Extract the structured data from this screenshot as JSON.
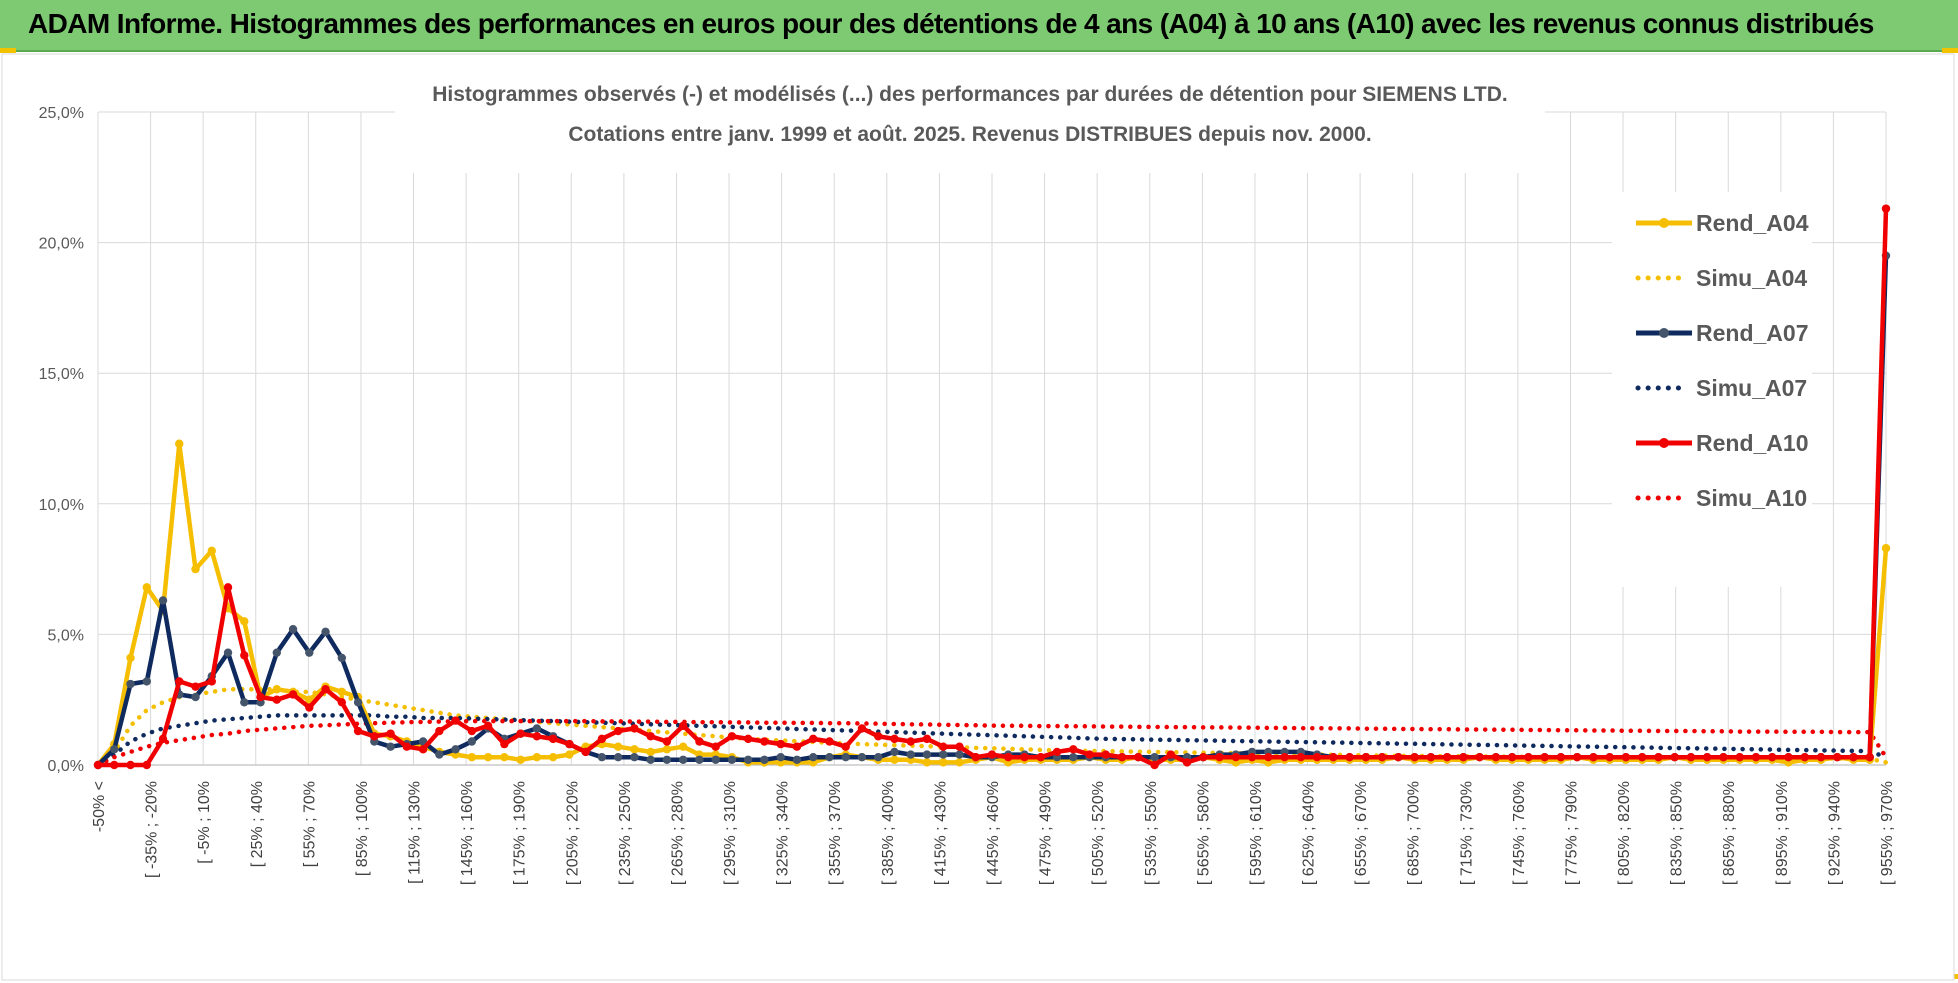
{
  "header": {
    "title": "ADAM Informe. Histogrammes des performances en euros pour des détentions de 4 ans (A04) à 10 ans (A10) avec les revenus connus distribués"
  },
  "chart_data": {
    "type": "line",
    "title": "Histogrammes observés (-) et modélisés (...) des performances par durées de détention pour SIEMENS LTD.",
    "subtitle": "Cotations entre janv. 1999 et août. 2025. Revenus DISTRIBUES depuis nov. 2000.",
    "xlabel": "",
    "ylabel": "",
    "ylim": [
      0,
      25
    ],
    "ytick_labels": [
      "0,0%",
      "5,0%",
      "10,0%",
      "15,0%",
      "20,0%",
      "25,0%"
    ],
    "grid": true,
    "legend_position": "right",
    "x_tick_labels": [
      "-50% <",
      "[ -35% ; -20%",
      "[ -5% ; 10%",
      "[ 25% ; 40%",
      "[ 55% ; 70%",
      "[ 85% ; 100%",
      "[ 115% ; 130%",
      "[ 145% ; 160%",
      "[ 175% ; 190%",
      "[ 205% ; 220%",
      "[ 235% ; 250%",
      "[ 265% ; 280%",
      "[ 295% ; 310%",
      "[ 325% ; 340%",
      "[ 355% ; 370%",
      "[ 385% ; 400%",
      "[ 415% ; 430%",
      "[ 445% ; 460%",
      "[ 475% ; 490%",
      "[ 505% ; 520%",
      "[ 535% ; 550%",
      "[ 565% ; 580%",
      "[ 595% ; 610%",
      "[ 625% ; 640%",
      "[ 655% ; 670%",
      "[ 685% ; 700%",
      "[ 715% ; 730%",
      "[ 745% ; 760%",
      "[ 775% ; 790%",
      "[ 805% ; 820%",
      "[ 835% ; 850%",
      "[ 865% ; 880%",
      "[ 895% ; 910%",
      "[ 925% ; 940%",
      "[ 955% ; 970%"
    ],
    "series": [
      {
        "name": "Rend_A04",
        "color": "#f5be00",
        "style": "solid",
        "markers": true,
        "values": [
          0.0,
          0.8,
          4.1,
          6.8,
          5.9,
          12.3,
          7.5,
          8.2,
          6.0,
          5.5,
          2.6,
          2.9,
          2.8,
          2.5,
          3.0,
          2.8,
          2.6,
          1.2,
          1.1,
          0.9,
          0.7,
          0.5,
          0.4,
          0.3,
          0.3,
          0.3,
          0.2,
          0.3,
          0.3,
          0.4,
          0.7,
          0.8,
          0.7,
          0.6,
          0.5,
          0.6,
          0.7,
          0.4,
          0.4,
          0.3,
          0.1,
          0.1,
          0.1,
          0.1,
          0.1,
          0.3,
          0.4,
          0.3,
          0.2,
          0.2,
          0.2,
          0.1,
          0.1,
          0.1,
          0.2,
          0.3,
          0.1,
          0.2,
          0.2,
          0.2,
          0.2,
          0.3,
          0.2,
          0.2,
          0.3,
          0.2,
          0.2,
          0.2,
          0.3,
          0.2,
          0.1,
          0.2,
          0.1,
          0.2,
          0.2,
          0.2,
          0.2,
          0.2,
          0.2,
          0.2,
          0.3,
          0.2,
          0.2,
          0.2,
          0.2,
          0.3,
          0.2,
          0.2,
          0.2,
          0.2,
          0.2,
          0.3,
          0.2,
          0.2,
          0.2,
          0.2,
          0.2,
          0.3,
          0.2,
          0.2,
          0.2,
          0.2,
          0.2,
          0.2,
          0.1,
          0.2,
          0.2,
          0.3,
          0.2,
          0.2,
          8.3
        ]
      },
      {
        "name": "Simu_A04",
        "color": "#f5be00",
        "style": "dotted",
        "markers": false,
        "values": [
          0.0,
          0.5,
          1.5,
          2.1,
          2.4,
          2.6,
          2.7,
          2.8,
          2.9,
          2.9,
          2.9,
          2.9,
          2.8,
          2.8,
          2.7,
          2.6,
          2.5,
          2.4,
          2.3,
          2.2,
          2.1,
          2.0,
          1.9,
          1.85,
          1.8,
          1.75,
          1.7,
          1.65,
          1.6,
          1.55,
          1.5,
          1.45,
          1.4,
          1.35,
          1.3,
          1.25,
          1.2,
          1.15,
          1.1,
          1.05,
          1.0,
          0.97,
          0.94,
          0.91,
          0.88,
          0.85,
          0.82,
          0.8,
          0.78,
          0.76,
          0.74,
          0.72,
          0.7,
          0.68,
          0.66,
          0.64,
          0.62,
          0.6,
          0.58,
          0.56,
          0.55,
          0.54,
          0.53,
          0.52,
          0.51,
          0.5,
          0.49,
          0.48,
          0.47,
          0.46,
          0.45,
          0.44,
          0.43,
          0.42,
          0.41,
          0.4,
          0.39,
          0.38,
          0.37,
          0.36,
          0.35,
          0.35,
          0.34,
          0.34,
          0.33,
          0.33,
          0.32,
          0.32,
          0.31,
          0.31,
          0.3,
          0.3,
          0.3,
          0.29,
          0.29,
          0.28,
          0.28,
          0.28,
          0.27,
          0.27,
          0.27,
          0.26,
          0.26,
          0.26,
          0.25,
          0.25,
          0.25,
          0.25,
          0.24,
          0.24,
          0.1
        ]
      },
      {
        "name": "Rend_A07",
        "color": "#0f2a5e",
        "style": "solid",
        "markers": true,
        "values": [
          0.0,
          0.6,
          3.1,
          3.2,
          6.3,
          2.7,
          2.6,
          3.4,
          4.3,
          2.4,
          2.4,
          4.3,
          5.2,
          4.3,
          5.1,
          4.1,
          2.4,
          0.9,
          0.7,
          0.8,
          0.9,
          0.4,
          0.6,
          0.9,
          1.4,
          1.0,
          1.2,
          1.4,
          1.1,
          0.8,
          0.5,
          0.3,
          0.3,
          0.3,
          0.2,
          0.2,
          0.2,
          0.2,
          0.2,
          0.2,
          0.2,
          0.2,
          0.3,
          0.2,
          0.3,
          0.3,
          0.3,
          0.3,
          0.3,
          0.5,
          0.4,
          0.4,
          0.4,
          0.4,
          0.3,
          0.3,
          0.4,
          0.4,
          0.3,
          0.3,
          0.3,
          0.3,
          0.3,
          0.3,
          0.3,
          0.3,
          0.3,
          0.3,
          0.3,
          0.4,
          0.4,
          0.5,
          0.5,
          0.5,
          0.5,
          0.4,
          0.3,
          0.3,
          0.3,
          0.3,
          0.3,
          0.3,
          0.3,
          0.3,
          0.3,
          0.3,
          0.3,
          0.3,
          0.3,
          0.3,
          0.3,
          0.3,
          0.3,
          0.3,
          0.3,
          0.3,
          0.3,
          0.3,
          0.3,
          0.3,
          0.3,
          0.3,
          0.3,
          0.3,
          0.3,
          0.3,
          0.3,
          0.3,
          0.3,
          0.3,
          19.5
        ]
      },
      {
        "name": "Simu_A07",
        "color": "#0f2a5e",
        "style": "dotted",
        "markers": false,
        "values": [
          0.0,
          0.4,
          0.9,
          1.2,
          1.4,
          1.5,
          1.6,
          1.7,
          1.75,
          1.8,
          1.85,
          1.9,
          1.9,
          1.9,
          1.9,
          1.9,
          1.9,
          1.9,
          1.85,
          1.85,
          1.8,
          1.8,
          1.8,
          1.78,
          1.76,
          1.74,
          1.72,
          1.7,
          1.68,
          1.66,
          1.64,
          1.62,
          1.6,
          1.58,
          1.56,
          1.54,
          1.52,
          1.5,
          1.48,
          1.46,
          1.44,
          1.42,
          1.4,
          1.38,
          1.36,
          1.34,
          1.32,
          1.3,
          1.28,
          1.26,
          1.24,
          1.22,
          1.2,
          1.18,
          1.16,
          1.14,
          1.12,
          1.1,
          1.08,
          1.06,
          1.04,
          1.02,
          1.0,
          0.99,
          0.98,
          0.97,
          0.96,
          0.95,
          0.94,
          0.93,
          0.92,
          0.91,
          0.9,
          0.89,
          0.88,
          0.87,
          0.86,
          0.85,
          0.84,
          0.83,
          0.82,
          0.81,
          0.8,
          0.79,
          0.78,
          0.77,
          0.76,
          0.75,
          0.74,
          0.73,
          0.72,
          0.71,
          0.7,
          0.69,
          0.68,
          0.67,
          0.66,
          0.65,
          0.64,
          0.63,
          0.62,
          0.61,
          0.6,
          0.59,
          0.58,
          0.57,
          0.56,
          0.55,
          0.54,
          0.53,
          0.3
        ]
      },
      {
        "name": "Rend_A10",
        "color": "#f00000",
        "style": "solid",
        "markers": true,
        "values": [
          0.0,
          0.0,
          0.0,
          0.0,
          1.0,
          3.2,
          3.0,
          3.2,
          6.8,
          4.2,
          2.6,
          2.5,
          2.7,
          2.2,
          2.9,
          2.4,
          1.3,
          1.1,
          1.2,
          0.7,
          0.6,
          1.3,
          1.7,
          1.3,
          1.5,
          0.8,
          1.2,
          1.1,
          1.0,
          0.8,
          0.5,
          1.0,
          1.3,
          1.4,
          1.1,
          0.9,
          1.5,
          0.9,
          0.7,
          1.1,
          1.0,
          0.9,
          0.8,
          0.7,
          1.0,
          0.9,
          0.7,
          1.4,
          1.1,
          1.0,
          0.9,
          1.0,
          0.7,
          0.7,
          0.3,
          0.4,
          0.3,
          0.3,
          0.3,
          0.5,
          0.6,
          0.4,
          0.4,
          0.3,
          0.3,
          0.0,
          0.4,
          0.1,
          0.3,
          0.3,
          0.3,
          0.3,
          0.3,
          0.3,
          0.3,
          0.3,
          0.3,
          0.3,
          0.3,
          0.3,
          0.3,
          0.3,
          0.3,
          0.3,
          0.3,
          0.3,
          0.3,
          0.3,
          0.3,
          0.3,
          0.3,
          0.3,
          0.3,
          0.3,
          0.3,
          0.3,
          0.3,
          0.3,
          0.3,
          0.3,
          0.3,
          0.3,
          0.3,
          0.3,
          0.3,
          0.3,
          0.3,
          0.3,
          0.3,
          0.3,
          21.3
        ]
      },
      {
        "name": "Simu_A10",
        "color": "#f00000",
        "style": "dotted",
        "markers": false,
        "values": [
          0.0,
          0.3,
          0.5,
          0.7,
          0.85,
          0.95,
          1.05,
          1.15,
          1.2,
          1.3,
          1.35,
          1.4,
          1.45,
          1.5,
          1.52,
          1.55,
          1.58,
          1.6,
          1.62,
          1.64,
          1.65,
          1.66,
          1.67,
          1.68,
          1.68,
          1.68,
          1.68,
          1.68,
          1.68,
          1.68,
          1.68,
          1.67,
          1.67,
          1.66,
          1.66,
          1.65,
          1.65,
          1.64,
          1.64,
          1.63,
          1.63,
          1.62,
          1.62,
          1.61,
          1.61,
          1.6,
          1.6,
          1.59,
          1.58,
          1.57,
          1.56,
          1.55,
          1.54,
          1.53,
          1.52,
          1.51,
          1.5,
          1.5,
          1.49,
          1.49,
          1.48,
          1.48,
          1.47,
          1.47,
          1.46,
          1.46,
          1.45,
          1.45,
          1.44,
          1.44,
          1.43,
          1.43,
          1.42,
          1.42,
          1.41,
          1.41,
          1.4,
          1.4,
          1.39,
          1.39,
          1.38,
          1.38,
          1.37,
          1.37,
          1.36,
          1.36,
          1.35,
          1.35,
          1.34,
          1.34,
          1.33,
          1.33,
          1.32,
          1.32,
          1.31,
          1.31,
          1.3,
          1.3,
          1.3,
          1.29,
          1.29,
          1.28,
          1.28,
          1.28,
          1.27,
          1.27,
          1.27,
          1.26,
          1.26,
          1.26,
          0.3
        ]
      }
    ]
  }
}
